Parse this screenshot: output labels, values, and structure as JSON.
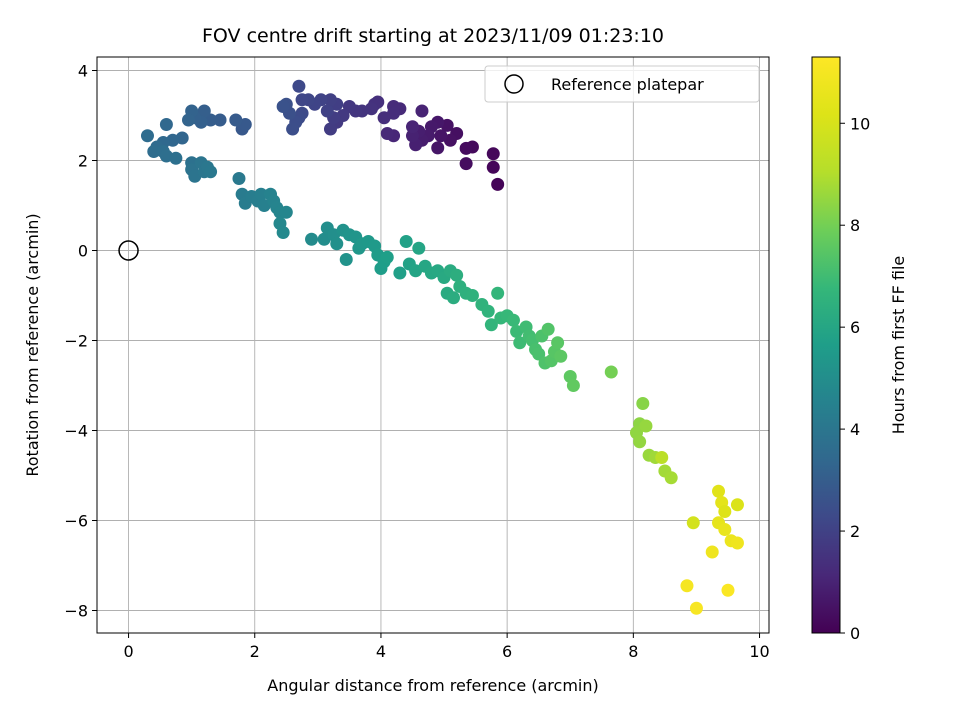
{
  "chart_data": {
    "type": "scatter",
    "title": "FOV centre drift starting at 2023/11/09 01:23:10",
    "xlabel": "Angular distance from reference (arcmin)",
    "ylabel": "Rotation from reference (arcmin)",
    "xlim": [
      -0.5,
      10.15
    ],
    "ylim": [
      -8.5,
      4.3
    ],
    "xticks": [
      0,
      2,
      4,
      6,
      8,
      10
    ],
    "yticks": [
      -8,
      -6,
      -4,
      -2,
      0,
      2,
      4
    ],
    "grid": true,
    "colorbar": {
      "label": "Hours from first FF file",
      "range": [
        0,
        11.3
      ],
      "ticks": [
        0,
        2,
        4,
        6,
        8,
        10
      ],
      "colormap": "viridis"
    },
    "legend": {
      "position": "top-right",
      "entries": [
        {
          "label": "Reference platepar",
          "marker": "open-circle"
        }
      ]
    },
    "reference_point": {
      "x": 0,
      "y": 0
    },
    "points": [
      [
        5.85,
        1.47,
        0.1
      ],
      [
        5.78,
        1.85,
        0.15
      ],
      [
        5.78,
        2.15,
        0.2
      ],
      [
        5.45,
        2.3,
        0.25
      ],
      [
        5.35,
        2.27,
        0.3
      ],
      [
        5.35,
        1.93,
        0.35
      ],
      [
        5.2,
        2.6,
        0.4
      ],
      [
        5.1,
        2.45,
        0.45
      ],
      [
        5.05,
        2.78,
        0.5
      ],
      [
        4.95,
        2.55,
        0.55
      ],
      [
        4.9,
        2.28,
        0.6
      ],
      [
        4.9,
        2.85,
        0.65
      ],
      [
        4.8,
        2.75,
        0.7
      ],
      [
        4.75,
        2.55,
        0.75
      ],
      [
        4.65,
        2.45,
        0.8
      ],
      [
        4.6,
        2.65,
        0.85
      ],
      [
        4.55,
        2.35,
        0.9
      ],
      [
        4.5,
        2.55,
        0.95
      ],
      [
        4.65,
        3.1,
        1.0
      ],
      [
        4.5,
        2.75,
        1.05
      ],
      [
        4.2,
        2.55,
        1.1
      ],
      [
        4.1,
        2.6,
        1.15
      ],
      [
        4.3,
        3.15,
        1.2
      ],
      [
        4.2,
        3.2,
        1.25
      ],
      [
        4.2,
        3.05,
        1.3
      ],
      [
        4.05,
        2.95,
        1.35
      ],
      [
        3.95,
        3.3,
        1.4
      ],
      [
        3.9,
        3.25,
        1.45
      ],
      [
        3.85,
        3.15,
        1.5
      ],
      [
        3.7,
        3.1,
        1.55
      ],
      [
        3.6,
        3.1,
        1.6
      ],
      [
        3.5,
        3.2,
        1.65
      ],
      [
        3.4,
        3.0,
        1.7
      ],
      [
        3.3,
        2.85,
        1.75
      ],
      [
        3.2,
        2.7,
        1.8
      ],
      [
        3.25,
        2.95,
        1.85
      ],
      [
        3.3,
        3.25,
        1.9
      ],
      [
        3.2,
        3.35,
        1.95
      ],
      [
        3.15,
        3.1,
        2.0
      ],
      [
        3.05,
        3.35,
        2.05
      ],
      [
        2.95,
        3.25,
        2.1
      ],
      [
        2.85,
        3.35,
        2.15
      ],
      [
        2.75,
        3.35,
        2.2
      ],
      [
        2.7,
        3.65,
        2.25
      ],
      [
        2.75,
        3.05,
        2.3
      ],
      [
        2.7,
        2.95,
        2.35
      ],
      [
        2.65,
        2.85,
        2.4
      ],
      [
        2.6,
        2.7,
        2.45
      ],
      [
        2.55,
        3.05,
        2.5
      ],
      [
        2.5,
        3.25,
        2.55
      ],
      [
        2.45,
        3.2,
        2.6
      ],
      [
        1.8,
        2.7,
        2.8
      ],
      [
        1.85,
        2.8,
        2.85
      ],
      [
        1.7,
        2.9,
        2.9
      ],
      [
        1.45,
        2.9,
        2.95
      ],
      [
        1.3,
        2.9,
        3.0
      ],
      [
        1.2,
        3.1,
        3.05
      ],
      [
        1.15,
        2.85,
        3.1
      ],
      [
        1.05,
        2.95,
        3.15
      ],
      [
        1.0,
        3.1,
        3.2
      ],
      [
        0.95,
        2.9,
        3.25
      ],
      [
        0.85,
        2.5,
        3.3
      ],
      [
        0.7,
        2.45,
        3.35
      ],
      [
        0.6,
        2.8,
        3.4
      ],
      [
        0.55,
        2.4,
        3.45
      ],
      [
        0.45,
        2.3,
        3.5
      ],
      [
        0.3,
        2.55,
        3.55
      ],
      [
        0.4,
        2.2,
        3.6
      ],
      [
        0.55,
        2.2,
        3.65
      ],
      [
        0.6,
        2.1,
        3.7
      ],
      [
        0.75,
        2.05,
        3.75
      ],
      [
        1.0,
        1.95,
        3.8
      ],
      [
        1.0,
        1.8,
        3.85
      ],
      [
        1.05,
        1.65,
        3.9
      ],
      [
        1.15,
        1.95,
        3.95
      ],
      [
        1.2,
        1.75,
        4.0
      ],
      [
        1.25,
        1.85,
        4.05
      ],
      [
        1.3,
        1.75,
        4.1
      ],
      [
        1.75,
        1.6,
        4.15
      ],
      [
        1.8,
        1.25,
        4.2
      ],
      [
        1.85,
        1.05,
        4.25
      ],
      [
        1.95,
        1.2,
        4.3
      ],
      [
        2.05,
        1.1,
        4.35
      ],
      [
        2.1,
        1.25,
        4.4
      ],
      [
        2.15,
        1.0,
        4.45
      ],
      [
        2.25,
        1.25,
        4.5
      ],
      [
        2.3,
        1.1,
        4.55
      ],
      [
        2.35,
        0.95,
        4.6
      ],
      [
        2.4,
        0.85,
        4.65
      ],
      [
        2.5,
        0.85,
        4.7
      ],
      [
        2.4,
        0.6,
        4.75
      ],
      [
        2.45,
        0.4,
        4.8
      ],
      [
        2.9,
        0.25,
        4.9
      ],
      [
        3.1,
        0.25,
        4.95
      ],
      [
        3.15,
        0.5,
        5.0
      ],
      [
        3.25,
        0.35,
        5.05
      ],
      [
        3.3,
        0.15,
        5.1
      ],
      [
        3.4,
        0.45,
        5.15
      ],
      [
        3.45,
        -0.2,
        5.2
      ],
      [
        3.5,
        0.35,
        5.25
      ],
      [
        3.6,
        0.3,
        5.3
      ],
      [
        3.65,
        0.05,
        5.35
      ],
      [
        3.7,
        0.15,
        5.4
      ],
      [
        3.8,
        0.2,
        5.45
      ],
      [
        3.9,
        0.1,
        5.5
      ],
      [
        3.95,
        -0.1,
        5.55
      ],
      [
        4.0,
        -0.4,
        5.6
      ],
      [
        4.05,
        -0.25,
        5.65
      ],
      [
        4.1,
        -0.15,
        5.7
      ],
      [
        4.3,
        -0.5,
        5.75
      ],
      [
        4.4,
        0.2,
        5.8
      ],
      [
        4.45,
        -0.3,
        5.85
      ],
      [
        4.55,
        -0.45,
        5.9
      ],
      [
        4.6,
        0.05,
        5.95
      ],
      [
        4.7,
        -0.35,
        6.0
      ],
      [
        4.8,
        -0.5,
        6.05
      ],
      [
        4.9,
        -0.45,
        6.1
      ],
      [
        5.0,
        -0.6,
        6.15
      ],
      [
        5.05,
        -0.95,
        6.2
      ],
      [
        5.1,
        -0.45,
        6.25
      ],
      [
        5.15,
        -1.05,
        6.3
      ],
      [
        5.2,
        -0.55,
        6.35
      ],
      [
        5.25,
        -0.8,
        6.4
      ],
      [
        5.35,
        -0.95,
        6.45
      ],
      [
        5.45,
        -1.0,
        6.5
      ],
      [
        5.6,
        -1.2,
        6.55
      ],
      [
        5.7,
        -1.35,
        6.6
      ],
      [
        5.75,
        -1.65,
        6.65
      ],
      [
        5.85,
        -0.95,
        6.7
      ],
      [
        5.9,
        -1.5,
        6.75
      ],
      [
        6.0,
        -1.45,
        6.8
      ],
      [
        6.1,
        -1.55,
        6.85
      ],
      [
        6.15,
        -1.8,
        6.9
      ],
      [
        6.2,
        -2.05,
        6.95
      ],
      [
        6.3,
        -1.7,
        7.0
      ],
      [
        6.35,
        -1.9,
        7.05
      ],
      [
        6.4,
        -2.0,
        7.1
      ],
      [
        6.45,
        -2.2,
        7.15
      ],
      [
        6.5,
        -2.3,
        7.2
      ],
      [
        6.55,
        -1.9,
        7.25
      ],
      [
        6.6,
        -2.5,
        7.3
      ],
      [
        6.65,
        -1.75,
        7.35
      ],
      [
        6.7,
        -2.45,
        7.4
      ],
      [
        6.75,
        -2.25,
        7.45
      ],
      [
        6.8,
        -2.05,
        7.5
      ],
      [
        6.85,
        -2.35,
        7.55
      ],
      [
        7.0,
        -2.8,
        7.6
      ],
      [
        7.05,
        -3.0,
        7.65
      ],
      [
        7.65,
        -2.7,
        8.0
      ],
      [
        8.15,
        -3.4,
        8.3
      ],
      [
        8.1,
        -3.85,
        8.4
      ],
      [
        8.05,
        -4.05,
        8.45
      ],
      [
        8.1,
        -4.25,
        8.5
      ],
      [
        8.2,
        -3.9,
        8.55
      ],
      [
        8.25,
        -4.55,
        8.6
      ],
      [
        8.35,
        -4.6,
        8.7
      ],
      [
        8.45,
        -4.6,
        9.2
      ],
      [
        8.5,
        -4.9,
        8.75
      ],
      [
        8.6,
        -5.05,
        8.8
      ],
      [
        8.95,
        -6.05,
        9.9
      ],
      [
        8.85,
        -7.45,
        11.0
      ],
      [
        9.0,
        -7.95,
        11.1
      ],
      [
        9.25,
        -6.7,
        10.8
      ],
      [
        9.35,
        -5.35,
        10.3
      ],
      [
        9.35,
        -6.05,
        10.5
      ],
      [
        9.4,
        -5.6,
        10.4
      ],
      [
        9.45,
        -5.8,
        10.2
      ],
      [
        9.45,
        -6.2,
        10.6
      ],
      [
        9.55,
        -6.45,
        10.7
      ],
      [
        9.65,
        -6.5,
        10.8
      ],
      [
        9.65,
        -5.65,
        10.1
      ],
      [
        9.5,
        -7.55,
        11.2
      ]
    ]
  }
}
